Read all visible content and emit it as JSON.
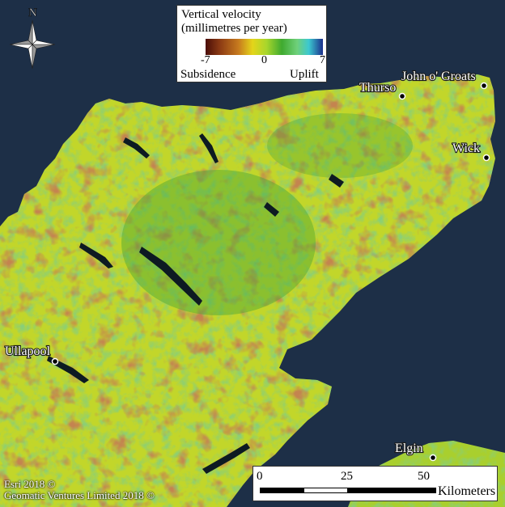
{
  "north_arrow": {
    "letter": "N"
  },
  "legend": {
    "title_line1": "Vertical velocity",
    "title_line2": "(millimetres per year)",
    "ticks": [
      "-7",
      "0",
      "7"
    ],
    "left_label": "Subsidence",
    "right_label": "Uplift",
    "colors": [
      "#4a0d08",
      "#8b3a14",
      "#c77a1e",
      "#e4d51a",
      "#a8d62c",
      "#3faa2f",
      "#6fd07a",
      "#3cc8d0",
      "#1b2f8c"
    ]
  },
  "places": [
    {
      "name": "Thurso"
    },
    {
      "name": "John o' Groats"
    },
    {
      "name": "Wick"
    },
    {
      "name": "Ullapool"
    },
    {
      "name": "Elgin"
    }
  ],
  "scalebar": {
    "ticks": [
      "0",
      "25",
      "50"
    ],
    "unit": "Kilometers"
  },
  "credits": [
    "Esri 2018 ©",
    "Geomatic Ventures Limited 2018 ©"
  ],
  "colors": {
    "sea": "#1d2f47",
    "land": "#b8d22a",
    "green": "#3f9e32",
    "subsidence": "#8a3a14"
  }
}
